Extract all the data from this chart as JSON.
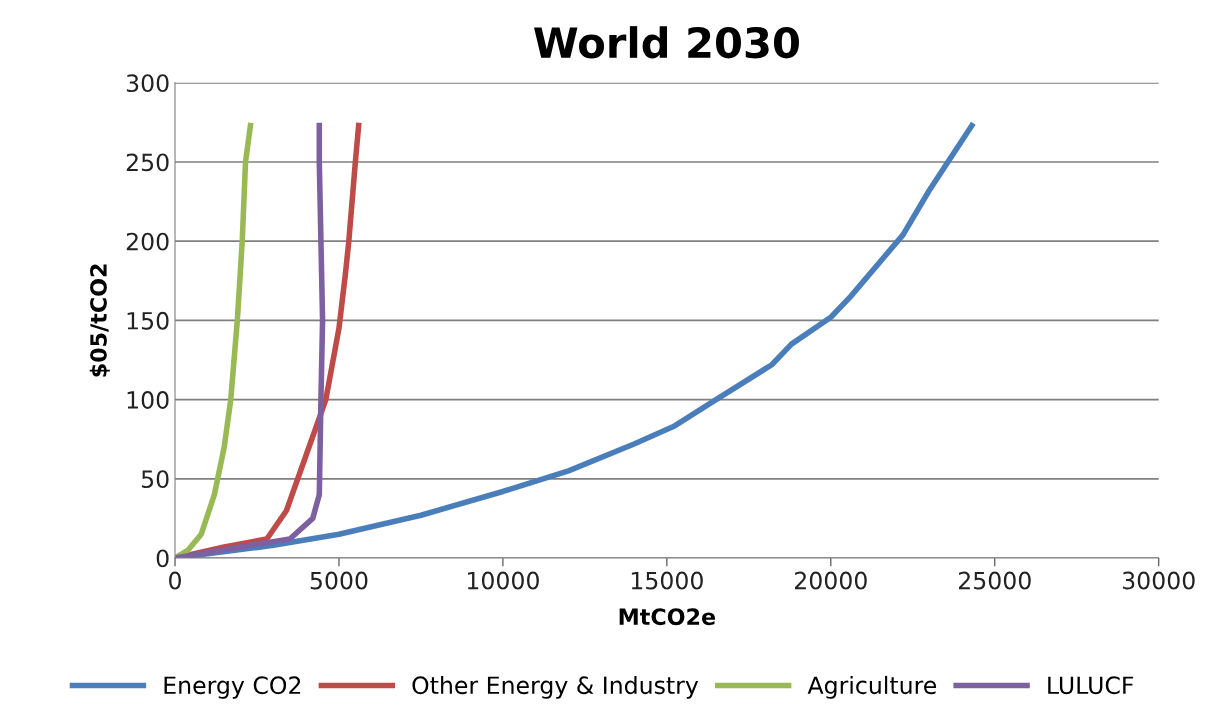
{
  "chart_data": {
    "type": "line",
    "title": "World 2030",
    "xlabel": "MtCO2e",
    "ylabel": "$05/tCO2",
    "xlim": [
      0,
      30000
    ],
    "xticks": [
      0,
      5000,
      10000,
      15000,
      20000,
      25000,
      30000
    ],
    "ylim": [
      0,
      300
    ],
    "yticks": [
      0,
      50,
      100,
      150,
      200,
      250,
      300
    ],
    "grid": "y",
    "legend": "bottom",
    "marker": "none",
    "line_style": "solid",
    "series": [
      {
        "name": "Energy CO2",
        "color": "#4a7ebb",
        "x": [
          0,
          3000,
          5000,
          7500,
          10000,
          12000,
          14000,
          15200,
          16500,
          18200,
          18800,
          20000,
          20600,
          22200,
          23000,
          24300
        ],
        "values": [
          0,
          8,
          15,
          27,
          42,
          55,
          72,
          83,
          100,
          122,
          135,
          152,
          165,
          204,
          232,
          273
        ]
      },
      {
        "name": "Other Energy & Industry",
        "color": "#be4b48",
        "x": [
          0,
          1500,
          2800,
          3400,
          4000,
          4600,
          5000,
          5200,
          5300,
          5500,
          5600
        ],
        "values": [
          0,
          7,
          12,
          30,
          65,
          100,
          145,
          180,
          200,
          250,
          273
        ]
      },
      {
        "name": "Agriculture",
        "color": "#98b954",
        "x": [
          0,
          400,
          800,
          1200,
          1500,
          1700,
          1900,
          2050,
          2150,
          2300
        ],
        "values": [
          0,
          5,
          15,
          40,
          70,
          100,
          150,
          200,
          250,
          273
        ]
      },
      {
        "name": "LULUCF",
        "color": "#7d60a0",
        "x": [
          0,
          2000,
          3500,
          4200,
          4400,
          4450,
          4500,
          4450,
          4400,
          4400
        ],
        "values": [
          0,
          7,
          12,
          25,
          40,
          100,
          150,
          200,
          250,
          273
        ]
      }
    ]
  }
}
